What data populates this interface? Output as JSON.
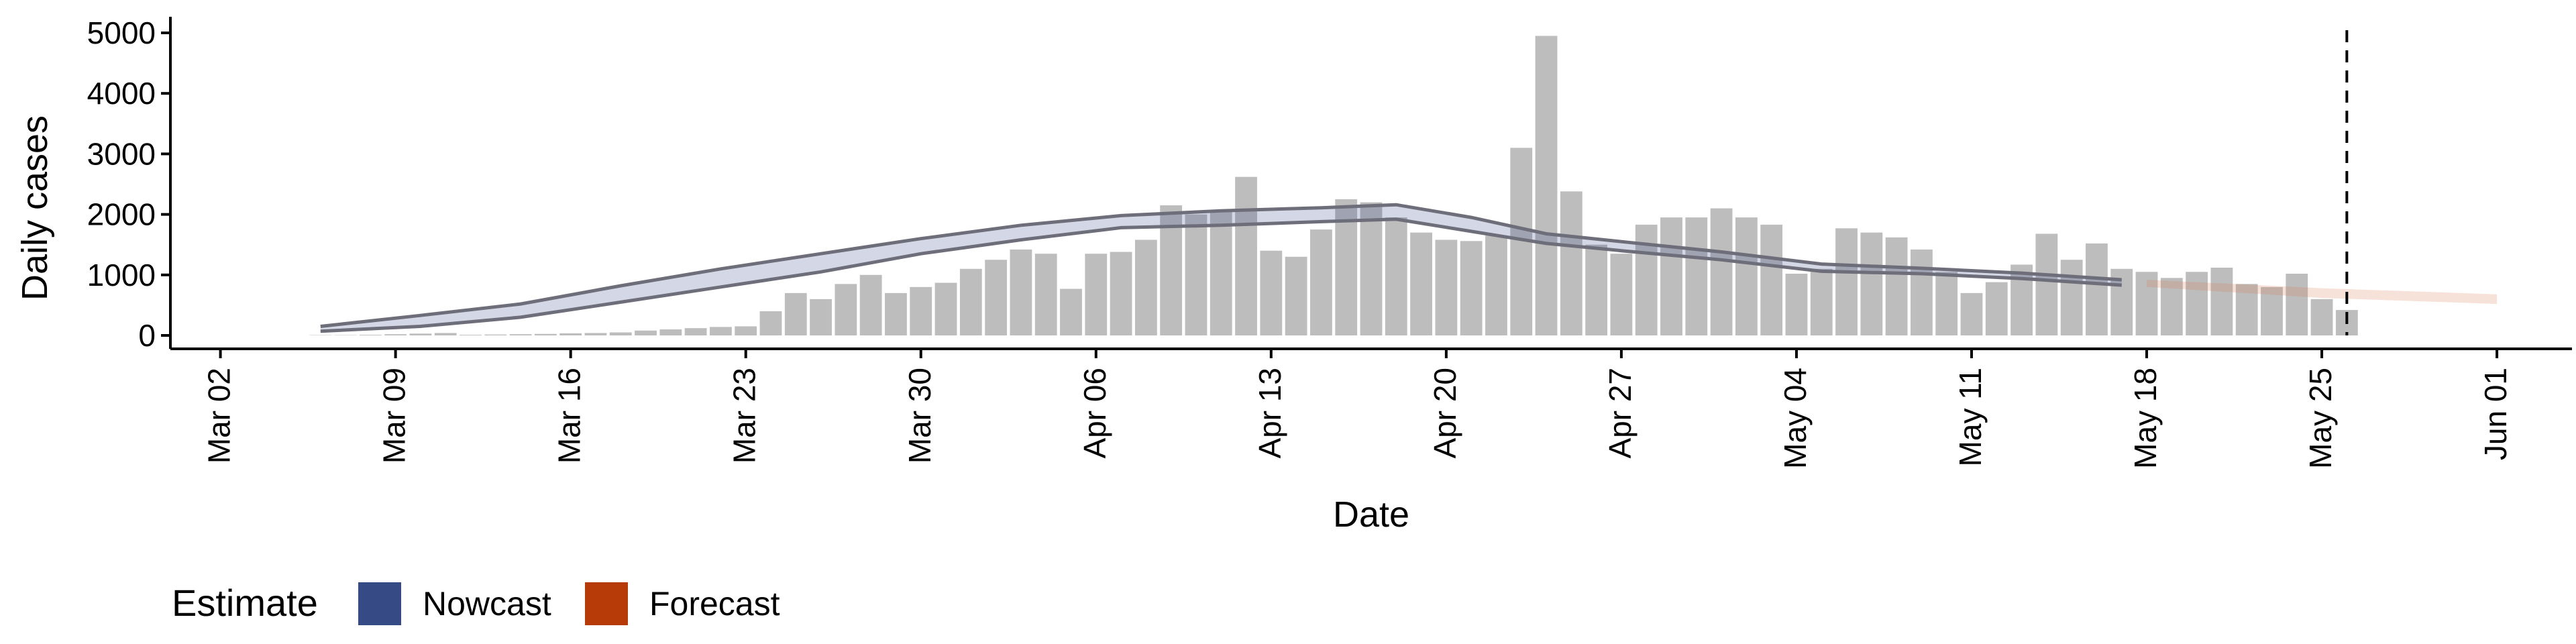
{
  "chart_data": {
    "type": "bar",
    "title": "",
    "xlabel": "Date",
    "ylabel": "Daily cases",
    "x_ticks": [
      "Mar 02",
      "Mar 09",
      "Mar 16",
      "Mar 23",
      "Mar 30",
      "Apr 06",
      "Apr 13",
      "Apr 20",
      "Apr 27",
      "May 04",
      "May 11",
      "May 18",
      "May 25",
      "Jun 01"
    ],
    "x_tick_dates": [
      "2020-03-02",
      "2020-03-09",
      "2020-03-16",
      "2020-03-23",
      "2020-03-30",
      "2020-04-06",
      "2020-04-13",
      "2020-04-20",
      "2020-04-27",
      "2020-05-04",
      "2020-05-11",
      "2020-05-18",
      "2020-05-25",
      "2020-06-01"
    ],
    "y_ticks": [
      0,
      1000,
      2000,
      3000,
      4000,
      5000
    ],
    "ylim": [
      0,
      5000
    ],
    "xlim": [
      "2020-02-29",
      "2020-06-04"
    ],
    "grid": false,
    "bar_start_date": "2020-03-06",
    "bar_values": [
      5,
      5,
      10,
      20,
      30,
      40,
      10,
      15,
      20,
      25,
      35,
      40,
      50,
      80,
      100,
      120,
      140,
      150,
      400,
      700,
      600,
      850,
      1000,
      700,
      800,
      870,
      1100,
      1250,
      1420,
      1350,
      770,
      1350,
      1380,
      1580,
      2150,
      2000,
      2050,
      2620,
      1400,
      1300,
      1750,
      2250,
      2200,
      1950,
      1700,
      1580,
      1560,
      1650,
      3100,
      4950,
      2380,
      1500,
      1350,
      1830,
      1950,
      1950,
      2100,
      1950,
      1830,
      1020,
      1100,
      1770,
      1700,
      1620,
      1420,
      1050,
      700,
      880,
      1170,
      1680,
      1250,
      1520,
      1100,
      1050,
      950,
      1050,
      1120,
      850,
      800,
      1020,
      600,
      420
    ],
    "nowcast": {
      "dates": [
        "2020-03-06",
        "2020-03-10",
        "2020-03-14",
        "2020-03-18",
        "2020-03-22",
        "2020-03-26",
        "2020-03-30",
        "2020-04-03",
        "2020-04-07",
        "2020-04-11",
        "2020-04-15",
        "2020-04-18",
        "2020-04-21",
        "2020-04-24",
        "2020-04-27",
        "2020-05-01",
        "2020-05-05",
        "2020-05-09",
        "2020-05-13",
        "2020-05-17"
      ],
      "lower": [
        70,
        150,
        300,
        550,
        800,
        1050,
        1350,
        1580,
        1780,
        1820,
        1880,
        1920,
        1720,
        1520,
        1400,
        1250,
        1060,
        1020,
        940,
        830
      ],
      "upper": [
        150,
        330,
        520,
        820,
        1100,
        1350,
        1600,
        1820,
        1980,
        2060,
        2110,
        2160,
        1950,
        1680,
        1550,
        1380,
        1180,
        1110,
        1030,
        920
      ]
    },
    "forecast": {
      "dates": [
        "2020-05-18",
        "2020-05-25",
        "2020-06-01"
      ],
      "lower": [
        800,
        620,
        520
      ],
      "upper": [
        920,
        780,
        680
      ]
    },
    "vline_date": "2020-05-26",
    "legend": {
      "title": "Estimate",
      "position": "bottom-left",
      "items": [
        {
          "label": "Nowcast",
          "color": "#364B85"
        },
        {
          "label": "Forecast",
          "color": "#B63B09"
        }
      ]
    },
    "colors": {
      "bars": "#BDBDBD",
      "nowcast_band": "#3B4F8F",
      "nowcast_line": "#6E6E7A",
      "forecast_band": "#D97A50"
    }
  }
}
